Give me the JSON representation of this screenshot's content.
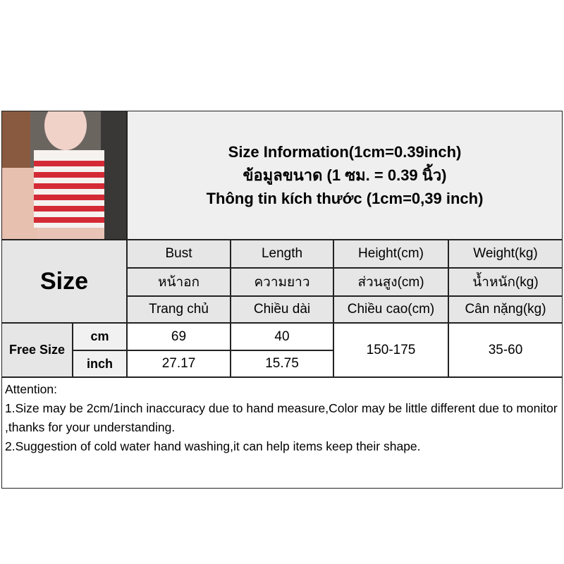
{
  "header": {
    "lines": [
      "Size Information(1cm=0.39inch)",
      "ข้อมูลขนาด (1 ซม. = 0.39 นิ้ว)",
      "Thông tin kích thước (1cm=0,39 inch)"
    ]
  },
  "table": {
    "size_label": "Size",
    "columns": [
      {
        "en": "Bust",
        "th": "หน้าอก",
        "vi": "Trang chủ"
      },
      {
        "en": "Length",
        "th": "ความยาว",
        "vi": "Chiều dài"
      },
      {
        "en": "Height(cm)",
        "th": "ส่วนสูง(cm)",
        "vi": "Chiều cao(cm)"
      },
      {
        "en": "Weight(kg)",
        "th": "น้ำหนัก(kg)",
        "vi": "Cân nặng(kg)"
      }
    ],
    "row": {
      "size": "Free Size",
      "units": [
        "cm",
        "inch"
      ],
      "bust": [
        "69",
        "27.17"
      ],
      "length": [
        "40",
        "15.75"
      ],
      "height": "150-175",
      "weight": "35-60"
    }
  },
  "attention": {
    "title": "Attention:",
    "lines": [
      "1.Size may be 2cm/1inch inaccuracy due to hand measure,Color may be little different due to monitor ,thanks for your understanding.",
      "2.Suggestion of cold water hand washing,it can help items keep their shape."
    ]
  },
  "colors": {
    "stripe_red": "#d42a35",
    "header_bg": "#e6e6e6"
  }
}
